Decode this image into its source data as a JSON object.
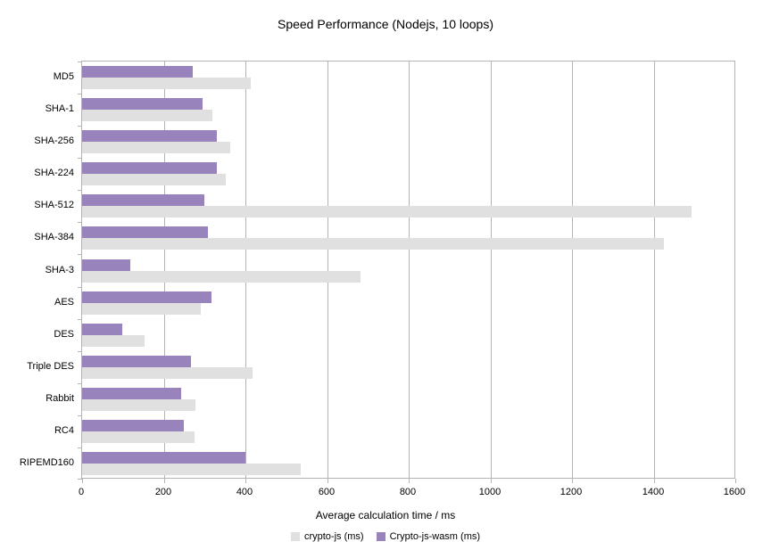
{
  "title": "Speed Performance (Nodejs, 10 loops)",
  "chart_data": {
    "type": "bar",
    "orientation": "horizontal",
    "title": "Speed Performance (Nodejs, 10 loops)",
    "xlabel": "Average calculation time / ms",
    "ylabel": "",
    "xlim": [
      0,
      1600
    ],
    "x_ticks": [
      0,
      200,
      400,
      600,
      800,
      1000,
      1200,
      1400,
      1600
    ],
    "grid": true,
    "legend_position": "bottom",
    "categories": [
      "MD5",
      "SHA-1",
      "SHA-256",
      "SHA-224",
      "SHA-512",
      "SHA-384",
      "SHA-3",
      "AES",
      "DES",
      "Triple DES",
      "Rabbit",
      "RC4",
      "RIPEMD160"
    ],
    "series": [
      {
        "name": "crypto-js (ms)",
        "color": "#e0e0e0",
        "values": [
          413,
          320,
          363,
          353,
          1492,
          1425,
          681,
          291,
          154,
          418,
          278,
          275,
          535
        ]
      },
      {
        "name": "Crypto-js-wasm (ms)",
        "color": "#9883bd",
        "values": [
          270,
          295,
          329,
          330,
          300,
          308,
          118,
          318,
          98,
          266,
          243,
          249,
          400
        ]
      }
    ]
  }
}
